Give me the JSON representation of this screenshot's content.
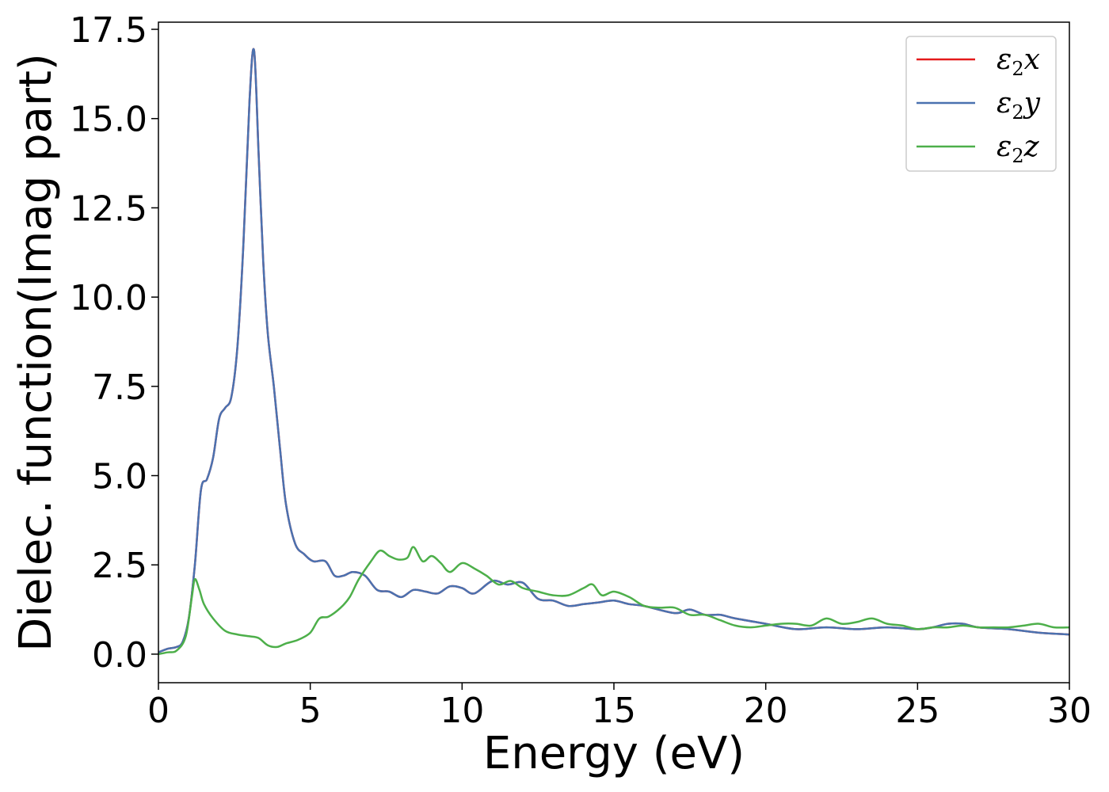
{
  "chart_data": {
    "type": "line",
    "xlabel": "Energy (eV)",
    "ylabel": "Dielec. function(Imag part)",
    "xlim": [
      0,
      30
    ],
    "ylim": [
      -0.8,
      17.7
    ],
    "xticks": [
      0,
      5,
      10,
      15,
      20,
      25,
      30
    ],
    "xtick_labels": [
      "0",
      "5",
      "10",
      "15",
      "20",
      "25",
      "30"
    ],
    "yticks": [
      0.0,
      2.5,
      5.0,
      7.5,
      10.0,
      12.5,
      15.0,
      17.5
    ],
    "ytick_labels": [
      "0.0",
      "2.5",
      "5.0",
      "7.5",
      "10.0",
      "12.5",
      "15.0",
      "17.5"
    ],
    "grid": false,
    "legend_position": "top-right",
    "series": [
      {
        "name": "ε2x",
        "legend_base": "ε",
        "legend_sub": "2",
        "legend_var": "x",
        "color": "#e41a1c",
        "x": [
          0,
          0.3,
          0.6,
          0.8,
          1.0,
          1.2,
          1.4,
          1.6,
          1.8,
          2.0,
          2.2,
          2.4,
          2.6,
          2.8,
          3.0,
          3.15,
          3.3,
          3.45,
          3.6,
          3.8,
          4.0,
          4.2,
          4.5,
          4.8,
          5.1,
          5.5,
          5.8,
          6.1,
          6.4,
          6.8,
          7.2,
          7.6,
          8.0,
          8.4,
          8.8,
          9.2,
          9.6,
          10.0,
          10.4,
          11.0,
          11.5,
          12.0,
          12.5,
          13.0,
          13.5,
          14.0,
          14.5,
          15.0,
          15.5,
          16.0,
          17.0,
          17.5,
          18.0,
          18.5,
          19.0,
          20.0,
          21.0,
          22.0,
          23.0,
          24.0,
          25.0,
          25.5,
          26.0,
          26.5,
          27.0,
          28.0,
          29.0,
          30.0
        ],
        "values": [
          0.05,
          0.15,
          0.2,
          0.35,
          1.0,
          2.5,
          4.6,
          4.9,
          5.5,
          6.6,
          6.9,
          7.2,
          8.6,
          11.5,
          15.5,
          16.9,
          14.0,
          11.0,
          9.0,
          7.5,
          5.8,
          4.2,
          3.1,
          2.8,
          2.6,
          2.6,
          2.2,
          2.2,
          2.3,
          2.2,
          1.8,
          1.75,
          1.6,
          1.8,
          1.75,
          1.7,
          1.9,
          1.85,
          1.7,
          2.05,
          1.95,
          2.0,
          1.55,
          1.5,
          1.35,
          1.4,
          1.45,
          1.5,
          1.4,
          1.35,
          1.15,
          1.25,
          1.1,
          1.1,
          1.0,
          0.85,
          0.7,
          0.75,
          0.7,
          0.75,
          0.7,
          0.75,
          0.85,
          0.85,
          0.75,
          0.7,
          0.6,
          0.55
        ]
      },
      {
        "name": "ε2y",
        "legend_base": "ε",
        "legend_sub": "2",
        "legend_var": "y",
        "color": "#4a72b0",
        "x": [
          0,
          0.3,
          0.6,
          0.8,
          1.0,
          1.2,
          1.4,
          1.6,
          1.8,
          2.0,
          2.2,
          2.4,
          2.6,
          2.8,
          3.0,
          3.15,
          3.3,
          3.45,
          3.6,
          3.8,
          4.0,
          4.2,
          4.5,
          4.8,
          5.1,
          5.5,
          5.8,
          6.1,
          6.4,
          6.8,
          7.2,
          7.6,
          8.0,
          8.4,
          8.8,
          9.2,
          9.6,
          10.0,
          10.4,
          11.0,
          11.5,
          12.0,
          12.5,
          13.0,
          13.5,
          14.0,
          14.5,
          15.0,
          15.5,
          16.0,
          17.0,
          17.5,
          18.0,
          18.5,
          19.0,
          20.0,
          21.0,
          22.0,
          23.0,
          24.0,
          25.0,
          25.5,
          26.0,
          26.5,
          27.0,
          28.0,
          29.0,
          30.0
        ],
        "values": [
          0.05,
          0.15,
          0.2,
          0.35,
          1.0,
          2.5,
          4.6,
          4.9,
          5.5,
          6.6,
          6.9,
          7.2,
          8.6,
          11.5,
          15.5,
          16.9,
          14.0,
          11.0,
          9.0,
          7.5,
          5.8,
          4.2,
          3.1,
          2.8,
          2.6,
          2.6,
          2.2,
          2.2,
          2.3,
          2.2,
          1.8,
          1.75,
          1.6,
          1.8,
          1.75,
          1.7,
          1.9,
          1.85,
          1.7,
          2.05,
          1.95,
          2.0,
          1.55,
          1.5,
          1.35,
          1.4,
          1.45,
          1.5,
          1.4,
          1.35,
          1.15,
          1.25,
          1.1,
          1.1,
          1.0,
          0.85,
          0.7,
          0.75,
          0.7,
          0.75,
          0.7,
          0.75,
          0.85,
          0.85,
          0.75,
          0.7,
          0.6,
          0.55
        ]
      },
      {
        "name": "ε2z",
        "legend_base": "ε",
        "legend_sub": "2",
        "legend_var": "z",
        "color": "#4daf4a",
        "x": [
          0,
          0.3,
          0.6,
          0.9,
          1.1,
          1.2,
          1.35,
          1.5,
          1.8,
          2.2,
          2.6,
          3.0,
          3.3,
          3.6,
          3.9,
          4.2,
          4.6,
          5.0,
          5.3,
          5.6,
          6.0,
          6.3,
          6.6,
          7.0,
          7.3,
          7.6,
          7.9,
          8.2,
          8.4,
          8.7,
          9.0,
          9.3,
          9.6,
          10.0,
          10.4,
          10.8,
          11.2,
          11.6,
          12.0,
          12.5,
          13.0,
          13.5,
          14.0,
          14.3,
          14.6,
          15.0,
          15.5,
          16.0,
          16.5,
          17.0,
          17.5,
          18.0,
          18.5,
          19.0,
          19.5,
          20.0,
          20.5,
          21.0,
          21.5,
          22.0,
          22.5,
          23.0,
          23.5,
          24.0,
          24.5,
          25.0,
          25.5,
          26.0,
          26.5,
          27.0,
          27.5,
          28.0,
          28.5,
          29.0,
          29.5,
          30.0
        ],
        "values": [
          0.0,
          0.05,
          0.1,
          0.5,
          1.6,
          2.1,
          1.8,
          1.4,
          1.0,
          0.65,
          0.55,
          0.5,
          0.45,
          0.25,
          0.2,
          0.3,
          0.4,
          0.6,
          1.0,
          1.05,
          1.3,
          1.6,
          2.1,
          2.6,
          2.9,
          2.75,
          2.65,
          2.7,
          3.0,
          2.6,
          2.75,
          2.55,
          2.3,
          2.55,
          2.4,
          2.2,
          1.95,
          2.05,
          1.85,
          1.75,
          1.65,
          1.65,
          1.85,
          1.95,
          1.65,
          1.75,
          1.6,
          1.35,
          1.3,
          1.3,
          1.1,
          1.1,
          0.95,
          0.8,
          0.75,
          0.8,
          0.85,
          0.85,
          0.8,
          1.0,
          0.85,
          0.9,
          1.0,
          0.85,
          0.8,
          0.7,
          0.75,
          0.75,
          0.8,
          0.75,
          0.75,
          0.75,
          0.8,
          0.85,
          0.75,
          0.75
        ]
      }
    ]
  }
}
